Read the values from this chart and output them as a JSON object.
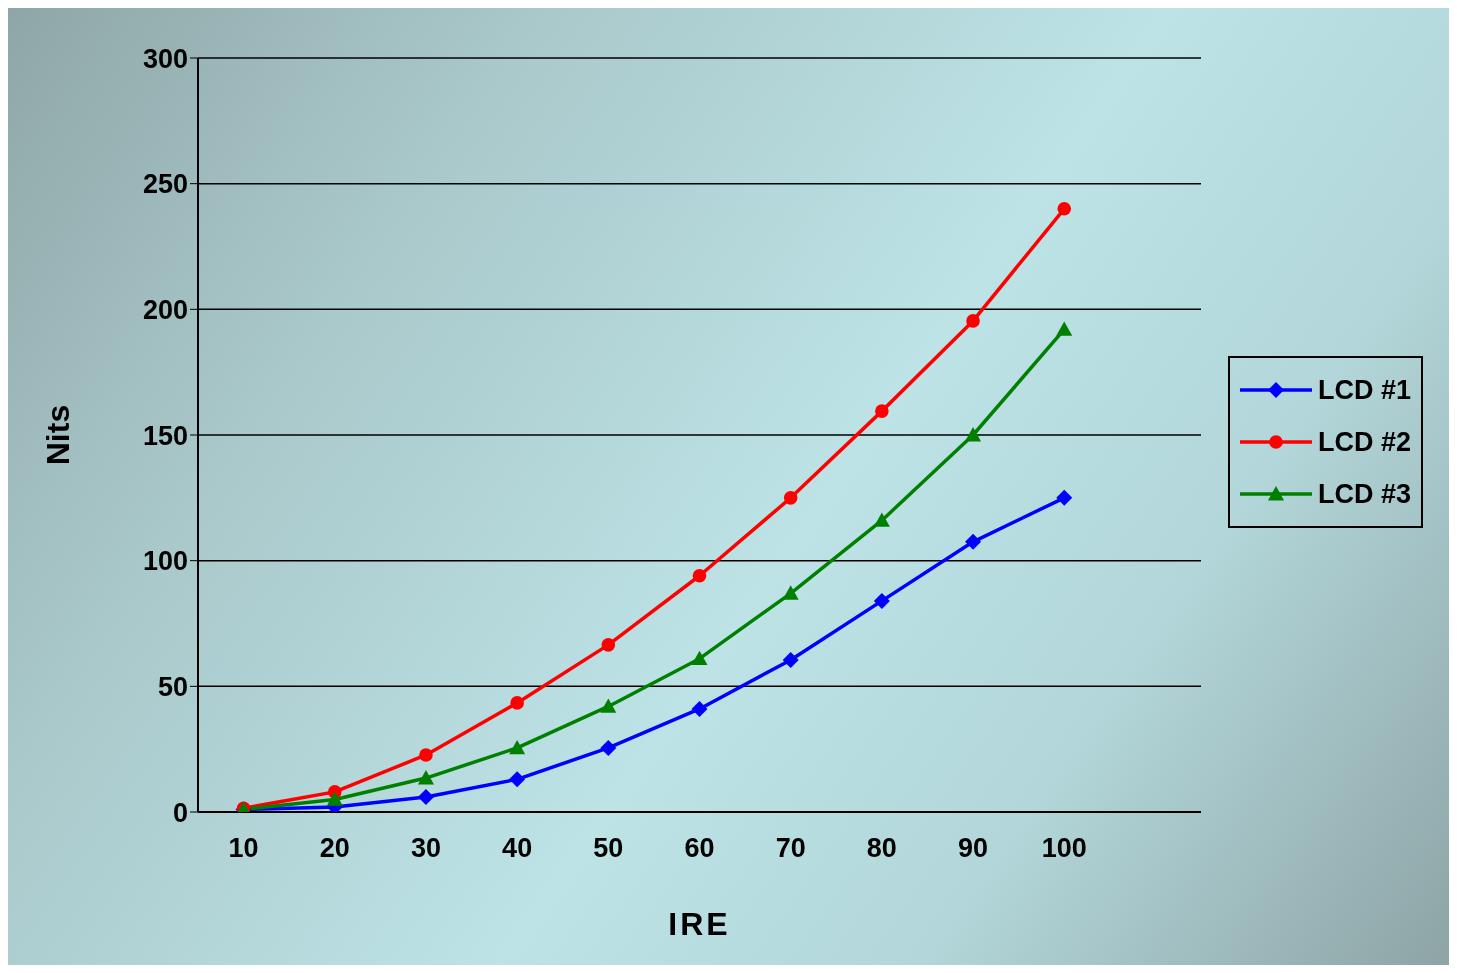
{
  "chart_data": {
    "type": "line",
    "xlabel": "IRE",
    "ylabel": "Nits",
    "categories": [
      "10",
      "20",
      "30",
      "40",
      "50",
      "60",
      "70",
      "80",
      "90",
      "100",
      null
    ],
    "series": [
      {
        "name": "LCD #1",
        "color": "#0000ff",
        "marker": "diamond",
        "values": [
          1,
          2,
          6,
          13,
          25.5,
          41,
          60.5,
          84,
          107.5,
          125,
          null
        ]
      },
      {
        "name": "LCD #2",
        "color": "#ff0000",
        "marker": "circle",
        "values": [
          1.5,
          8,
          22.7,
          43.4,
          66.5,
          94,
          125,
          159.5,
          195.4,
          240,
          null
        ]
      },
      {
        "name": "LCD #3",
        "color": "#008000",
        "marker": "triangle",
        "values": [
          1,
          5,
          13.5,
          25.5,
          42,
          61,
          87,
          116,
          150,
          192,
          null
        ]
      }
    ],
    "ylim": [
      0,
      300
    ],
    "yticks": [
      0,
      50,
      100,
      150,
      200,
      250,
      300
    ],
    "grid": "y",
    "legend": "right",
    "line_style": "solid"
  }
}
